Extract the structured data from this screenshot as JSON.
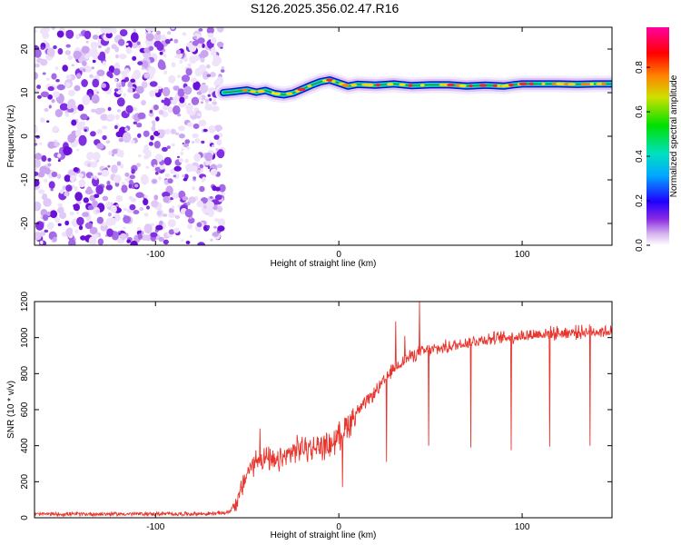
{
  "title": "S126.2025.356.02.47.R16",
  "colors": {
    "snr_line": "#e8342c",
    "axis": "#000000",
    "background": "#ffffff"
  },
  "chart_data": [
    {
      "type": "heatmap",
      "name": "spectrogram",
      "xlabel": "Height of straight line (km)",
      "ylabel": "Frequency (Hz)",
      "xlim": [
        -166,
        149
      ],
      "ylim": [
        -25,
        25
      ],
      "x_ticks": [
        -100,
        0,
        100
      ],
      "x_tick_labels": [
        "-100",
        "0",
        "100"
      ],
      "y_ticks": [
        -20,
        -10,
        0,
        10,
        20
      ],
      "y_tick_labels": [
        "-20",
        "-10",
        "0",
        "10",
        "20"
      ],
      "noise_region_x": [
        -166,
        -63
      ],
      "signal_track": {
        "x": [
          -63,
          -58,
          -50,
          -45,
          -40,
          -35,
          -30,
          -25,
          -20,
          -15,
          -10,
          -5,
          0,
          5,
          10,
          20,
          30,
          40,
          50,
          60,
          70,
          80,
          90,
          95,
          100,
          110,
          120,
          130,
          140,
          149
        ],
        "freq_hz": [
          10.0,
          10.2,
          10.6,
          10.1,
          10.5,
          9.8,
          9.5,
          9.9,
          10.8,
          11.7,
          12.5,
          12.9,
          12.2,
          11.5,
          11.9,
          11.7,
          12.0,
          11.6,
          11.8,
          11.8,
          11.5,
          11.7,
          11.5,
          11.8,
          12.0,
          12.0,
          12.0,
          11.9,
          12.0,
          12.0
        ]
      }
    },
    {
      "type": "colorbar",
      "name": "amplitude-colorbar",
      "label": "Normalized spectral amplitude",
      "range": [
        0.0,
        0.98
      ],
      "ticks": [
        0.0,
        0.2,
        0.4,
        0.6,
        0.8
      ],
      "tick_labels": [
        "0.0",
        "0.2",
        "0.4",
        "0.6",
        "0.8"
      ]
    },
    {
      "type": "line",
      "name": "snr",
      "xlabel": "Height of straight line (km)",
      "ylabel": "SNR (10 * v/v)",
      "xlim": [
        -166,
        149
      ],
      "ylim": [
        0,
        1200
      ],
      "x_ticks": [
        -100,
        0,
        100
      ],
      "x_tick_labels": [
        "-100",
        "0",
        "100"
      ],
      "y_ticks": [
        0,
        200,
        400,
        600,
        800,
        1000,
        1200
      ],
      "y_tick_labels": [
        "0",
        "200",
        "400",
        "600",
        "800",
        "1000",
        "1200"
      ],
      "series": [
        {
          "name": "SNR",
          "x": [
            -166,
            -70,
            -60,
            -55,
            -50,
            -45,
            -40,
            -35,
            -30,
            -25,
            -20,
            -15,
            -10,
            -5,
            0,
            5,
            10,
            15,
            20,
            25,
            30,
            35,
            40,
            45,
            50,
            55,
            60,
            65,
            70,
            80,
            90,
            100,
            110,
            120,
            130,
            140,
            149
          ],
          "y": [
            20,
            22,
            30,
            100,
            250,
            320,
            330,
            300,
            330,
            370,
            390,
            380,
            400,
            400,
            450,
            520,
            590,
            640,
            700,
            760,
            830,
            870,
            900,
            920,
            930,
            940,
            950,
            960,
            975,
            990,
            1000,
            1010,
            1020,
            1025,
            1030,
            1035,
            1035
          ]
        }
      ],
      "dips": [
        {
          "x": 2,
          "y": 170
        },
        {
          "x": 26,
          "y": 310
        },
        {
          "x": 49,
          "y": 400
        },
        {
          "x": 72,
          "y": 390
        },
        {
          "x": 94,
          "y": 375
        },
        {
          "x": 115,
          "y": 395
        },
        {
          "x": 137,
          "y": 400
        }
      ],
      "spikes": [
        {
          "x": 31,
          "y": 1090
        },
        {
          "x": 44,
          "y": 1200
        },
        {
          "x": 36,
          "y": 1010
        },
        {
          "x": -43,
          "y": 495
        }
      ]
    }
  ]
}
